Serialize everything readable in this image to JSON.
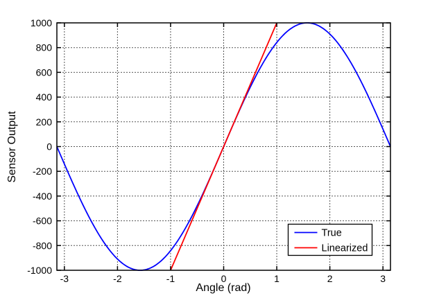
{
  "figure": {
    "background": "#ffffff",
    "axes_box_color": "#000000",
    "grid_color": "#555555"
  },
  "chart_data": {
    "type": "line",
    "title": "",
    "xlabel": "Angle (rad)",
    "ylabel": "Sensor Output",
    "xlim": [
      -3.1416,
      3.1416
    ],
    "ylim": [
      -1000,
      1000
    ],
    "xticks": [
      -3,
      -2,
      -1,
      0,
      1,
      2,
      3
    ],
    "yticks": [
      -1000,
      -800,
      -600,
      -400,
      -200,
      0,
      200,
      400,
      600,
      800,
      1000
    ],
    "grid": "dotted",
    "legend_position": "inside-lower-right",
    "legend_entries": [
      "True",
      "Linearized"
    ],
    "series": [
      {
        "name": "True",
        "color": "#0000ff",
        "style": "solid",
        "generator": {
          "type": "sine",
          "amplitude": 1000,
          "x_start": -3.1416,
          "x_end": 3.1416,
          "step": 0.02
        },
        "sample_points": {
          "x": [
            -3.1416,
            -3,
            -2.8,
            -2.6,
            -2.4,
            -2.2,
            -2,
            -1.8,
            -1.6,
            -1.4,
            -1.2,
            -1,
            -0.8,
            -0.6,
            -0.4,
            -0.2,
            0,
            0.2,
            0.4,
            0.6,
            0.8,
            1,
            1.2,
            1.4,
            1.6,
            1.8,
            2,
            2.2,
            2.4,
            2.6,
            2.8,
            3,
            3.1416
          ],
          "y": [
            0,
            -141,
            -335,
            -516,
            -675,
            -808,
            -909,
            -974,
            -1000,
            -985,
            -932,
            -841,
            -717,
            -565,
            -389,
            -199,
            0,
            199,
            389,
            565,
            717,
            841,
            932,
            985,
            1000,
            974,
            909,
            808,
            675,
            516,
            335,
            141,
            0
          ]
        }
      },
      {
        "name": "Linearized",
        "color": "#ff0000",
        "style": "solid",
        "points": {
          "x": [
            -1,
            1
          ],
          "y": [
            -1000,
            1000
          ]
        }
      }
    ]
  }
}
